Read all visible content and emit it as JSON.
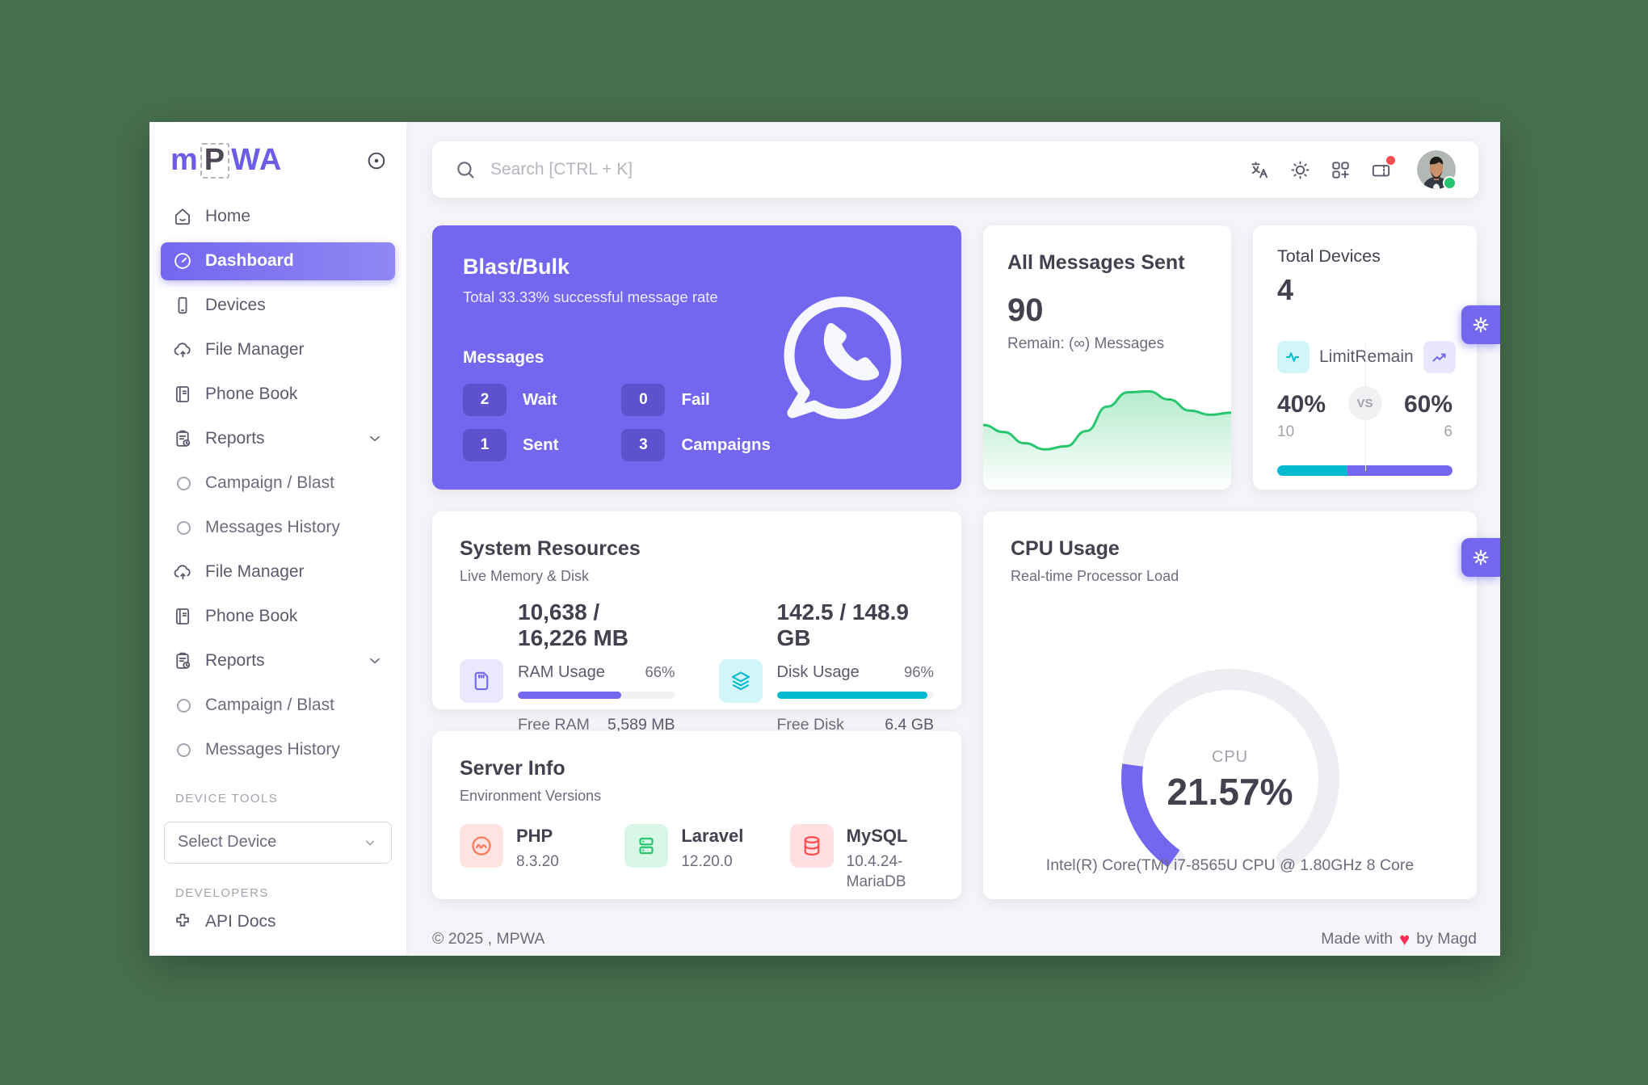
{
  "colors": {
    "accent": "#7367f0",
    "teal": "#00bad1",
    "green": "#28c76f",
    "red": "#ff4c51",
    "orange": "#ff7a5c",
    "page_bg": "#47704e",
    "surface": "#f5f5f9",
    "track": "#eeedf1"
  },
  "logo": {
    "part1": "m",
    "part2": "P",
    "part3": "WA"
  },
  "sidebar": {
    "items": [
      {
        "type": "item",
        "icon": "home-icon",
        "label": "Home"
      },
      {
        "type": "item",
        "icon": "dashboard-icon",
        "label": "Dashboard",
        "active": true
      },
      {
        "type": "item",
        "icon": "devices-icon",
        "label": "Devices"
      },
      {
        "type": "item",
        "icon": "file-manager-icon",
        "label": "File Manager"
      },
      {
        "type": "item",
        "icon": "phone-book-icon",
        "label": "Phone Book"
      },
      {
        "type": "item",
        "icon": "reports-icon",
        "label": "Reports",
        "chevron": true
      },
      {
        "type": "sub",
        "label": "Campaign / Blast"
      },
      {
        "type": "sub",
        "label": "Messages History"
      },
      {
        "type": "item",
        "icon": "file-manager-icon",
        "label": "File Manager"
      },
      {
        "type": "item",
        "icon": "phone-book-icon",
        "label": "Phone Book"
      },
      {
        "type": "item",
        "icon": "reports-icon",
        "label": "Reports",
        "chevron": true
      },
      {
        "type": "sub",
        "label": "Campaign / Blast"
      },
      {
        "type": "sub",
        "label": "Messages History"
      }
    ],
    "device_tools_label": "DEVICE TOOLS",
    "select_device_label": "Select Device",
    "developers_label": "DEVELOPERS",
    "api_docs_label": "API Docs"
  },
  "topbar": {
    "search_placeholder": "Search [CTRL + K]",
    "icons": [
      "translate",
      "light-mode",
      "app-grid",
      "ticket-notification",
      "avatar"
    ]
  },
  "cards": {
    "blast": {
      "title": "Blast/Bulk",
      "subtitle": "Total 33.33% successful message rate",
      "messages_label": "Messages",
      "stats": [
        {
          "value": "2",
          "label": "Wait"
        },
        {
          "value": "0",
          "label": "Fail"
        },
        {
          "value": "1",
          "label": "Sent"
        },
        {
          "value": "3",
          "label": "Campaigns"
        }
      ]
    },
    "messages_sent": {
      "title": "All Messages Sent",
      "value": "90",
      "remain": "Remain: (∞) Messages"
    },
    "total_devices": {
      "title": "Total Devices",
      "value": "4",
      "limit_label": "Limit",
      "remain_label": "Remain",
      "vs_label": "VS",
      "limit_pct": "40%",
      "remain_pct": "60%",
      "limit_pct_value": 40,
      "remain_pct_value": 60,
      "limit_count": "10",
      "remain_count": "6"
    },
    "system_resources": {
      "title": "System Resources",
      "subtitle": "Live Memory & Disk",
      "ram": {
        "usage_text": "10,638 / 16,226 MB",
        "label": "RAM Usage",
        "pct": "66%",
        "pct_value": 66,
        "free_label": "Free RAM",
        "free_value": "5,589 MB"
      },
      "disk": {
        "usage_text": "142.5 / 148.9 GB",
        "label": "Disk Usage",
        "pct": "96%",
        "pct_value": 96,
        "free_label": "Free Disk",
        "free_value": "6.4 GB"
      }
    },
    "cpu": {
      "title": "CPU Usage",
      "subtitle": "Real-time Processor Load",
      "gauge_label": "CPU",
      "value": "21.57%",
      "pct_value": 21.57,
      "cpu_model": "Intel(R) Core(TM) i7-8565U CPU @ 1.80GHz 8 Core"
    },
    "server_info": {
      "title": "Server Info",
      "subtitle": "Environment Versions",
      "items": [
        {
          "icon": "php-icon",
          "tint": "orange",
          "name": "PHP",
          "version": "8.3.20"
        },
        {
          "icon": "laravel-icon",
          "tint": "green",
          "name": "Laravel",
          "version": "12.20.0"
        },
        {
          "icon": "mysql-icon",
          "tint": "red",
          "name": "MySQL",
          "version": "10.4.24-MariaDB"
        }
      ]
    }
  },
  "chart_data": [
    {
      "type": "area",
      "title": "All Messages Sent sparkline",
      "x": [
        0,
        1,
        2,
        3,
        4,
        5,
        6,
        7,
        8,
        9,
        10,
        11,
        12
      ],
      "values": [
        54,
        47,
        36,
        30,
        33,
        48,
        72,
        86,
        87,
        79,
        68,
        64,
        66
      ],
      "ylim": [
        0,
        100
      ],
      "xlabel": "",
      "ylabel": "",
      "grid": false,
      "legend": "none",
      "line_color": "#28c76f"
    },
    {
      "type": "pie",
      "title": "CPU Usage gauge",
      "labels": [
        "used",
        "free"
      ],
      "values": [
        21.57,
        78.43
      ],
      "center_label": "CPU",
      "value_label": "21.57%",
      "fill_color": "#7367f0",
      "track_color": "#eeedf1"
    }
  ],
  "footer": {
    "copyright": "© 2025 , MPWA",
    "made_with_prefix": "Made with",
    "made_with_suffix": "by Magd"
  }
}
